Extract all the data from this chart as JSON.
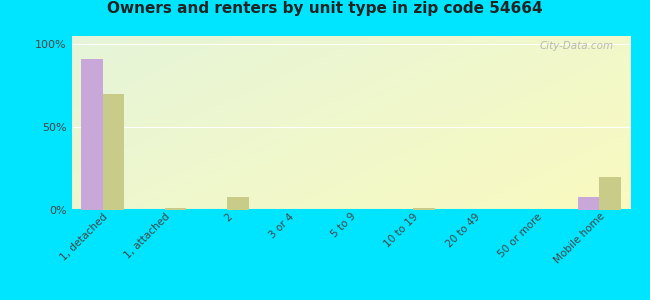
{
  "title": "Owners and renters by unit type in zip code 54664",
  "categories": [
    "1, detached",
    "1, attached",
    "2",
    "3 or 4",
    "5 to 9",
    "10 to 19",
    "20 to 49",
    "50 or more",
    "Mobile home"
  ],
  "owner_values": [
    91,
    0,
    0,
    0,
    0,
    0,
    0,
    0,
    8
  ],
  "renter_values": [
    70,
    1,
    8,
    0,
    0,
    1,
    0,
    0,
    20
  ],
  "owner_color": "#c8a8d8",
  "renter_color": "#c8cc88",
  "outer_bg": "#00e5ff",
  "ylabel_ticks": [
    "0%",
    "50%",
    "100%"
  ],
  "ytick_vals": [
    0,
    50,
    100
  ],
  "watermark": "City-Data.com",
  "ylim": [
    0,
    105
  ]
}
